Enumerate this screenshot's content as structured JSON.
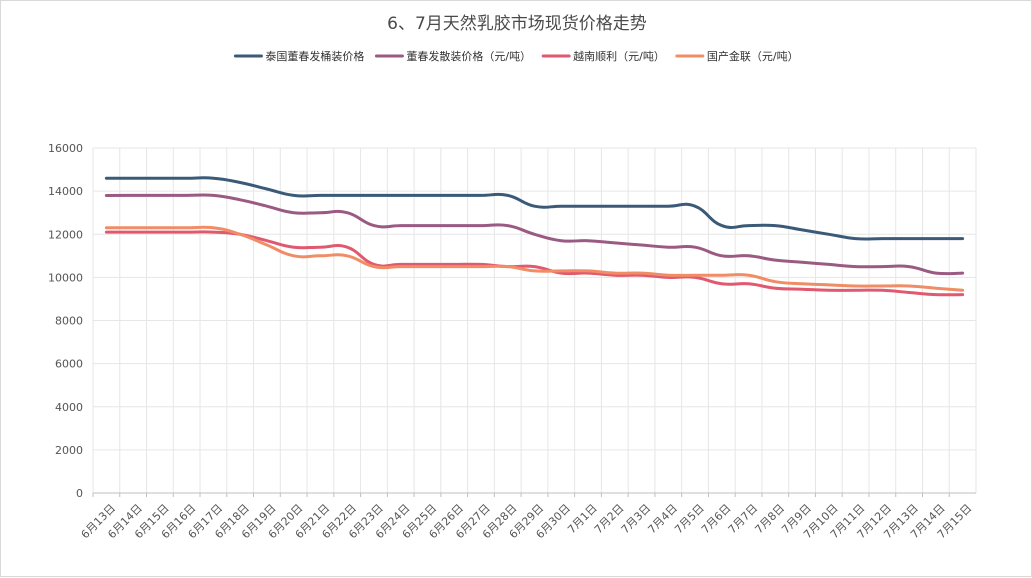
{
  "chart_data": {
    "type": "line",
    "title": "6、7月天然乳胶市场现货价格走势",
    "xlabel": "",
    "ylabel": "",
    "ylim": [
      0,
      16000
    ],
    "yticks": [
      0,
      2000,
      4000,
      6000,
      8000,
      10000,
      12000,
      14000,
      16000
    ],
    "grid": true,
    "legend_position": "top",
    "categories": [
      "6月13日",
      "6月14日",
      "6月15日",
      "6月16日",
      "6月17日",
      "6月18日",
      "6月19日",
      "6月20日",
      "6月21日",
      "6月22日",
      "6月23日",
      "6月24日",
      "6月25日",
      "6月26日",
      "6月27日",
      "6月28日",
      "6月29日",
      "6月30日",
      "7月1日",
      "7月2日",
      "7月3日",
      "7月4日",
      "7月5日",
      "7月6日",
      "7月7日",
      "7月8日",
      "7月9日",
      "7月10日",
      "7月11日",
      "7月12日",
      "7月13日",
      "7月14日",
      "7月15日"
    ],
    "series": [
      {
        "name": "泰国董春发桶装价格",
        "color": "#3b5a78",
        "values": [
          14600,
          14600,
          14600,
          14600,
          14600,
          14400,
          14100,
          13800,
          13800,
          13800,
          13800,
          13800,
          13800,
          13800,
          13800,
          13800,
          13300,
          13300,
          13300,
          13300,
          13300,
          13300,
          13300,
          12400,
          12400,
          12400,
          12200,
          12000,
          11800,
          11800,
          11800,
          11800,
          11800
        ]
      },
      {
        "name": "董春发散装价格（元/吨）",
        "color": "#9a5a82",
        "values": [
          13800,
          13800,
          13800,
          13800,
          13800,
          13600,
          13300,
          13000,
          13000,
          13000,
          12400,
          12400,
          12400,
          12400,
          12400,
          12400,
          12000,
          11700,
          11700,
          11600,
          11500,
          11400,
          11400,
          11000,
          11000,
          10800,
          10700,
          10600,
          10500,
          10500,
          10500,
          10200,
          10200
        ]
      },
      {
        "name": "越南顺利（元/吨）",
        "color": "#e0596e",
        "values": [
          12100,
          12100,
          12100,
          12100,
          12100,
          12000,
          11700,
          11400,
          11400,
          11400,
          10600,
          10600,
          10600,
          10600,
          10600,
          10500,
          10500,
          10200,
          10200,
          10100,
          10100,
          10000,
          10000,
          9700,
          9700,
          9500,
          9450,
          9400,
          9400,
          9400,
          9300,
          9200,
          9200
        ]
      },
      {
        "name": "国产金联（元/吨）",
        "color": "#f08c66",
        "values": [
          12300,
          12300,
          12300,
          12300,
          12300,
          12000,
          11500,
          11000,
          11000,
          11000,
          10500,
          10500,
          10500,
          10500,
          10500,
          10500,
          10300,
          10300,
          10300,
          10200,
          10200,
          10100,
          10100,
          10100,
          10100,
          9800,
          9700,
          9650,
          9600,
          9600,
          9600,
          9500,
          9400
        ]
      }
    ]
  }
}
